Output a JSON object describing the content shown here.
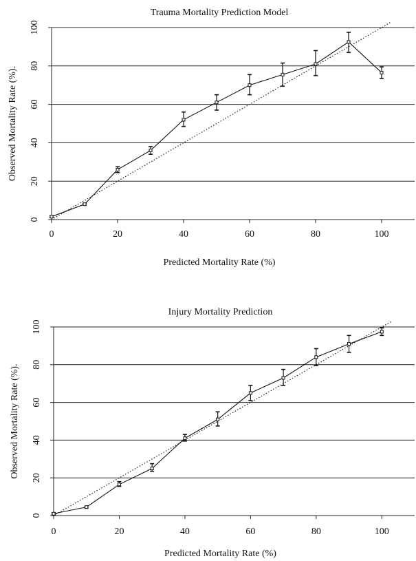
{
  "chart_data": [
    {
      "type": "line",
      "title": "Trauma Mortality Prediction Model",
      "xlabel": "Predicted Mortality Rate (%)",
      "ylabel": "Observed Mortality Rate (%).",
      "xlim": [
        0,
        110
      ],
      "ylim": [
        0,
        100
      ],
      "xticks": [
        0,
        20,
        40,
        60,
        80,
        100
      ],
      "yticks": [
        0,
        20,
        40,
        60,
        80,
        100
      ],
      "grid": "horizontal",
      "reference_line": {
        "style": "dotted",
        "x": [
          0,
          103
        ],
        "y": [
          0,
          103
        ]
      },
      "series": [
        {
          "x": [
            0,
            10,
            20,
            30,
            40,
            50,
            60,
            70,
            80,
            90,
            100
          ],
          "y": [
            1.5,
            8,
            26,
            36,
            52,
            61,
            70,
            75.5,
            81,
            92.5,
            76.5
          ],
          "err_low": [
            1,
            7.5,
            24.5,
            34,
            48.5,
            57,
            65,
            69.5,
            75,
            87,
            73.5
          ],
          "err_high": [
            2,
            8.5,
            27.5,
            38,
            56,
            65,
            75.5,
            81.5,
            88,
            97.5,
            79.5
          ]
        }
      ]
    },
    {
      "type": "line",
      "title": "Injury Mortality Prediction",
      "xlabel": "Predicted Mortality Rate (%)",
      "ylabel": "Observed Mortality Rate (%).",
      "xlim": [
        0,
        110
      ],
      "ylim": [
        0,
        100
      ],
      "xticks": [
        0,
        20,
        40,
        60,
        80,
        100
      ],
      "yticks": [
        0,
        20,
        40,
        60,
        80,
        100
      ],
      "grid": "horizontal",
      "reference_line": {
        "style": "dotted",
        "x": [
          0,
          103
        ],
        "y": [
          0,
          103
        ]
      },
      "series": [
        {
          "x": [
            0,
            10,
            20,
            30,
            40,
            50,
            60,
            70,
            80,
            90,
            100
          ],
          "y": [
            1,
            4.5,
            16.5,
            25,
            41,
            51,
            65,
            73,
            84,
            91,
            97.5
          ],
          "err_low": [
            0.5,
            4,
            15.5,
            23.5,
            39.5,
            47.5,
            61,
            69,
            79.5,
            86.5,
            95.5
          ],
          "err_high": [
            1.5,
            5,
            18,
            27.5,
            43,
            55,
            69,
            77.5,
            88.5,
            95.5,
            99.5
          ]
        }
      ]
    }
  ]
}
